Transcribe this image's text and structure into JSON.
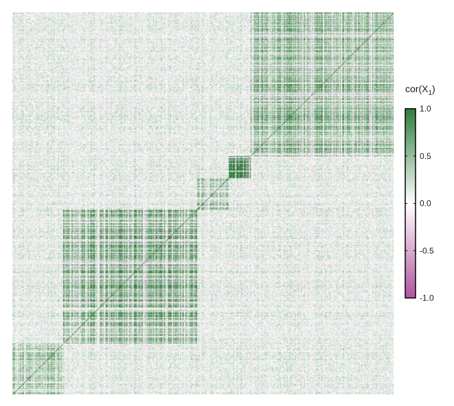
{
  "chart_data": {
    "type": "heatmap",
    "title": "",
    "xlabel": "",
    "ylabel": "",
    "n_variables": 600,
    "value_range": [
      -1,
      1
    ],
    "diagonal_value": 1.0,
    "block_structure": [
      {
        "block": 1,
        "start": 0,
        "end": 80,
        "mean_correlation": 0.3
      },
      {
        "block": 2,
        "start": 80,
        "end": 290,
        "mean_correlation": 0.45
      },
      {
        "block": 3,
        "start": 290,
        "end": 340,
        "mean_correlation": 0.35
      },
      {
        "block": 4,
        "start": 340,
        "end": 375,
        "mean_correlation": 0.8
      },
      {
        "block": 5,
        "start": 375,
        "end": 600,
        "mean_correlation": 0.4
      }
    ],
    "legend": {
      "title_main": "cor(X",
      "title_sub": "1",
      "title_end": ")",
      "ticks": [
        1.0,
        0.5,
        0.0,
        -0.5,
        -1.0
      ],
      "tick_labels": [
        "1.0",
        "0.5",
        "0.0",
        "-0.5",
        "-1.0"
      ],
      "placement": "right"
    },
    "colors": {
      "positive": "#2e7d3a",
      "zero": "#ffffff",
      "negative": "#b0549f"
    }
  }
}
